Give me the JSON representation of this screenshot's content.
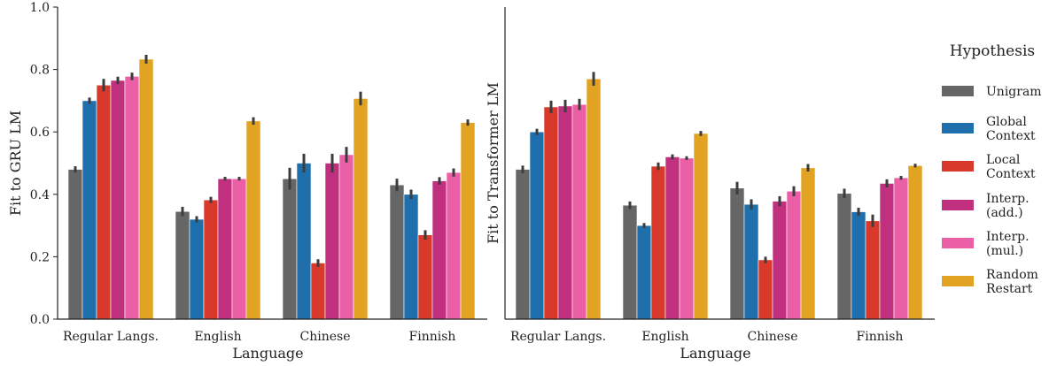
{
  "legend": {
    "title": "Hypothesis",
    "position": "right"
  },
  "chart_data": [
    {
      "type": "bar",
      "title": "",
      "xlabel": "Language",
      "ylabel": "Fit to GRU LM",
      "ylim": [
        0,
        1.0
      ],
      "yticks": [
        "0.0",
        "0.2",
        "0.4",
        "0.6",
        "0.8",
        "1.0"
      ],
      "grid": false,
      "categories": [
        "Regular Langs.",
        "English",
        "Chinese",
        "Finnish"
      ],
      "series": [
        {
          "name": [
            "Unigram"
          ],
          "color": "#666666",
          "values": [
            0.48,
            0.345,
            0.45,
            0.43
          ],
          "err": [
            0.01,
            0.015,
            0.035,
            0.02
          ]
        },
        {
          "name": [
            "Global",
            "Context"
          ],
          "color": "#1f6fad",
          "values": [
            0.7,
            0.32,
            0.5,
            0.4
          ],
          "err": [
            0.01,
            0.01,
            0.03,
            0.015
          ]
        },
        {
          "name": [
            "Local",
            "Context"
          ],
          "color": "#d8392b",
          "values": [
            0.75,
            0.382,
            0.18,
            0.27
          ],
          "err": [
            0.02,
            0.01,
            0.012,
            0.015
          ]
        },
        {
          "name": [
            "Interp.",
            "(add.)"
          ],
          "color": "#c1307e",
          "values": [
            0.765,
            0.45,
            0.5,
            0.443
          ],
          "err": [
            0.012,
            0.006,
            0.03,
            0.012
          ]
        },
        {
          "name": [
            "Interp.",
            "(mul.)"
          ],
          "color": "#ea5fa6",
          "values": [
            0.778,
            0.45,
            0.527,
            0.47
          ],
          "err": [
            0.012,
            0.006,
            0.025,
            0.013
          ]
        },
        {
          "name": [
            "Random",
            "Restart"
          ],
          "color": "#e3a322",
          "values": [
            0.833,
            0.635,
            0.707,
            0.63
          ],
          "err": [
            0.014,
            0.012,
            0.022,
            0.01
          ]
        }
      ]
    },
    {
      "type": "bar",
      "title": "",
      "xlabel": "Language",
      "ylabel": "Fit to Transformer LM",
      "ylim": [
        0,
        1.0
      ],
      "grid": false,
      "categories": [
        "Regular Langs.",
        "English",
        "Chinese",
        "Finnish"
      ],
      "series": [
        {
          "name": [
            "Unigram"
          ],
          "color": "#666666",
          "values": [
            0.48,
            0.365,
            0.42,
            0.403
          ],
          "err": [
            0.012,
            0.012,
            0.02,
            0.015
          ]
        },
        {
          "name": [
            "Global",
            "Context"
          ],
          "color": "#1f6fad",
          "values": [
            0.6,
            0.3,
            0.368,
            0.344
          ],
          "err": [
            0.01,
            0.008,
            0.016,
            0.013
          ]
        },
        {
          "name": [
            "Local",
            "Context"
          ],
          "color": "#d8392b",
          "values": [
            0.68,
            0.49,
            0.19,
            0.315
          ],
          "err": [
            0.02,
            0.012,
            0.01,
            0.02
          ]
        },
        {
          "name": [
            "Interp.",
            "(add.)"
          ],
          "color": "#c1307e",
          "values": [
            0.683,
            0.52,
            0.378,
            0.435
          ],
          "err": [
            0.02,
            0.008,
            0.016,
            0.013
          ]
        },
        {
          "name": [
            "Interp.",
            "(mul.)"
          ],
          "color": "#ea5fa6",
          "values": [
            0.688,
            0.516,
            0.41,
            0.453
          ],
          "err": [
            0.018,
            0.006,
            0.016,
            0.006
          ]
        },
        {
          "name": [
            "Random",
            "Restart"
          ],
          "color": "#e3a322",
          "values": [
            0.77,
            0.595,
            0.485,
            0.492
          ],
          "err": [
            0.022,
            0.008,
            0.012,
            0.006
          ]
        }
      ]
    }
  ]
}
